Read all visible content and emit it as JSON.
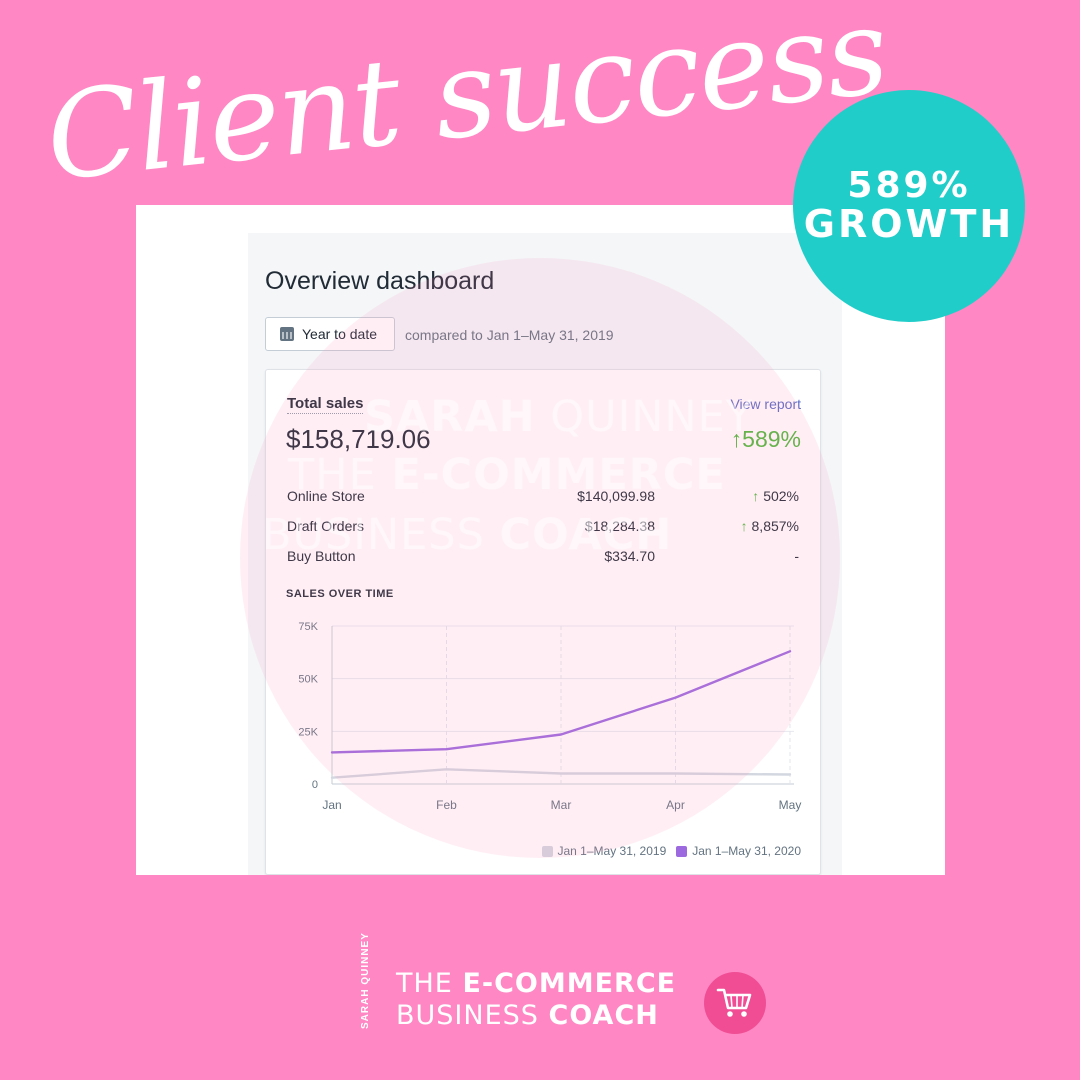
{
  "headline": "Client success",
  "badge": {
    "percent": "589%",
    "label": "GROWTH"
  },
  "dashboard": {
    "title": "Overview dashboard",
    "date_button": "Year to date",
    "compare_text": "compared to Jan 1–May 31, 2019"
  },
  "sales_card": {
    "label": "Total sales",
    "view_report": "View report",
    "total": "$158,719.06",
    "growth": "589%",
    "growth_arrow": "↑",
    "channels": [
      {
        "name": "Online Store",
        "amount": "$140,099.98",
        "change": "502%",
        "direction": "up"
      },
      {
        "name": "Draft Orders",
        "amount": "$18,284.38",
        "change": "8,857%",
        "direction": "up"
      },
      {
        "name": "Buy Button",
        "amount": "$334.70",
        "change": "-",
        "direction": "none"
      }
    ],
    "sales_over_time_title": "SALES OVER TIME"
  },
  "chart_data": {
    "type": "line",
    "title": "SALES OVER TIME",
    "categories": [
      "Jan",
      "Feb",
      "Mar",
      "Apr",
      "May"
    ],
    "y_ticks": [
      "0",
      "25K",
      "50K",
      "75K"
    ],
    "ylim": [
      0,
      75000
    ],
    "series": [
      {
        "name": "Jan 1–May 31, 2019",
        "color": "#d3d7e0",
        "values": [
          3000,
          7000,
          5000,
          5000,
          4500
        ]
      },
      {
        "name": "Jan 1–May 31, 2020",
        "color": "#9c6ade",
        "values": [
          15000,
          16500,
          23500,
          41000,
          63000
        ]
      }
    ],
    "legend_position": "bottom-right",
    "grid": true
  },
  "watermark": {
    "line1_light": "SARAH",
    "line1_regular": "QUINNEY",
    "line2_light": "THE",
    "line2_bold": "E-COMMERCE",
    "line3_light": "BUSINESS",
    "line3_bold": "COACH"
  },
  "footer_logo": {
    "vertical_name": "SARAH QUINNEY",
    "line1_light": "THE",
    "line1_bold": "E-COMMERCE",
    "line2_light": "BUSINESS",
    "line2_bold": "COACH",
    "icon": "shopping-cart-icon",
    "icon_bg": "#f04d94"
  },
  "colors": {
    "background": "#ff87c4",
    "badge": "#21cdc9",
    "positive": "#50b83c",
    "link": "#5c6ac4"
  }
}
